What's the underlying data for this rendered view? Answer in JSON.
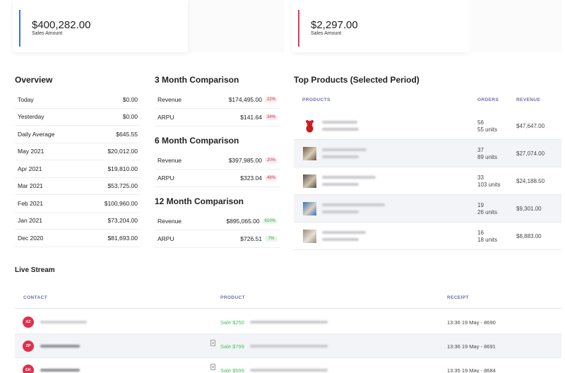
{
  "cards": [
    {
      "amount": "$400,282.00",
      "label": "Sales Amount",
      "color": "#3b6ee8"
    },
    {
      "amount": "$2,297.00",
      "label": "Sales Amount",
      "color": "#e5365a"
    }
  ],
  "overview": {
    "title": "Overview",
    "rows": [
      {
        "label": "Today",
        "value": "$0.00"
      },
      {
        "label": "Yesterday",
        "value": "$0.00"
      },
      {
        "label": "Daily Average",
        "value": "$645.55"
      },
      {
        "label": "May 2021",
        "value": "$20,012.00"
      },
      {
        "label": "Apr 2021",
        "value": "$19,810.00"
      },
      {
        "label": "Mar 2021",
        "value": "$53,725.00"
      },
      {
        "label": "Feb 2021",
        "value": "$100,960.00"
      },
      {
        "label": "Jan 2021",
        "value": "$73,204.00"
      },
      {
        "label": "Dec 2020",
        "value": "$81,693.00"
      }
    ]
  },
  "comparisons": [
    {
      "title": "3 Month Comparison",
      "rows": [
        {
          "label": "Revenue",
          "value": "$174,495.00",
          "badge": "22%",
          "trend": "red"
        },
        {
          "label": "ARPU",
          "value": "$141.64",
          "badge": "34%",
          "trend": "red"
        }
      ]
    },
    {
      "title": "6 Month Comparison",
      "rows": [
        {
          "label": "Revenue",
          "value": "$397,985.00",
          "badge": "20%",
          "trend": "red"
        },
        {
          "label": "ARPU",
          "value": "$323.04",
          "badge": "48%",
          "trend": "red"
        }
      ]
    },
    {
      "title": "12 Month Comparison",
      "rows": [
        {
          "label": "Revenue",
          "value": "$895,065.00",
          "badge": "610%",
          "trend": "green"
        },
        {
          "label": "ARPU",
          "value": "$726.51",
          "badge": "7%",
          "trend": "green"
        }
      ]
    }
  ],
  "top_products": {
    "title": "Top Products (Selected Period)",
    "headers": {
      "products": "PRODUCTS",
      "orders": "ORDERS",
      "revenue": "REVENUE"
    },
    "rows": [
      {
        "orders": "56",
        "units": "55 units",
        "revenue": "$47,647.00",
        "thumb": "red-teddy-icon"
      },
      {
        "orders": "37",
        "units": "89 units",
        "revenue": "$27,074.00",
        "thumb": "product-photo-icon"
      },
      {
        "orders": "33",
        "units": "103 units",
        "revenue": "$24,188.50",
        "thumb": "product-photo-icon"
      },
      {
        "orders": "19",
        "units": "26 units",
        "revenue": "$9,301.00",
        "thumb": "product-photo-icon"
      },
      {
        "orders": "16",
        "units": "18 units",
        "revenue": "$8,883.00",
        "thumb": "product-photo-icon"
      }
    ]
  },
  "live_stream": {
    "title": "Live Stream",
    "headers": {
      "contact": "CONTACT",
      "product": "PRODUCT",
      "receipt": "RECEIPT"
    },
    "rows": [
      {
        "initials": "AZ",
        "sale": "Sale $250",
        "receipt": "13:36 19 May - 8690"
      },
      {
        "initials": "ZP",
        "sale": "Sale $799",
        "receipt": "13:36 19 May - 8691"
      },
      {
        "initials": "EK",
        "sale": "Sale $599",
        "receipt": "13:35 19 May - 8684"
      }
    ]
  }
}
